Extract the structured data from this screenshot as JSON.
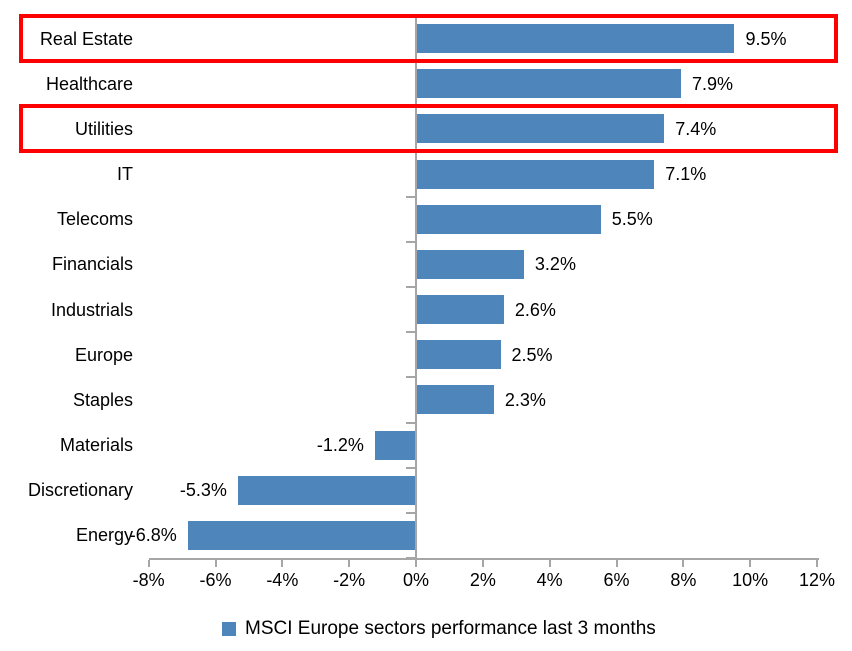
{
  "chart_data": {
    "type": "bar",
    "orientation": "horizontal",
    "title": "",
    "categories": [
      "Real Estate",
      "Healthcare",
      "Utilities",
      "IT",
      "Telecoms",
      "Financials",
      "Industrials",
      "Europe",
      "Staples",
      "Materials",
      "Discretionary",
      "Energy"
    ],
    "values": [
      9.5,
      7.9,
      7.4,
      7.1,
      5.5,
      3.2,
      2.6,
      2.5,
      2.3,
      -1.2,
      -5.3,
      -6.8
    ],
    "value_labels": [
      "9.5%",
      "7.9%",
      "7.4%",
      "7.1%",
      "5.5%",
      "3.2%",
      "2.6%",
      "2.5%",
      "2.3%",
      "-1.2%",
      "-5.3%",
      "-6.8%"
    ],
    "xlim": [
      -8,
      12
    ],
    "x_ticks": [
      -8,
      -6,
      -4,
      -2,
      0,
      2,
      4,
      6,
      8,
      10,
      12
    ],
    "x_tick_labels": [
      "-8%",
      "-6%",
      "-4%",
      "-2%",
      "0%",
      "2%",
      "4%",
      "6%",
      "8%",
      "10%",
      "12%"
    ],
    "grid": false,
    "legend": {
      "position": "bottom",
      "label": "MSCI Europe sectors performance last 3 months"
    },
    "highlighted_rows": [
      0,
      2
    ],
    "colors": {
      "bar": "#4e86bc",
      "highlight_box": "#ff0000",
      "axis": "#a6a6a6",
      "text": "#000000"
    }
  }
}
